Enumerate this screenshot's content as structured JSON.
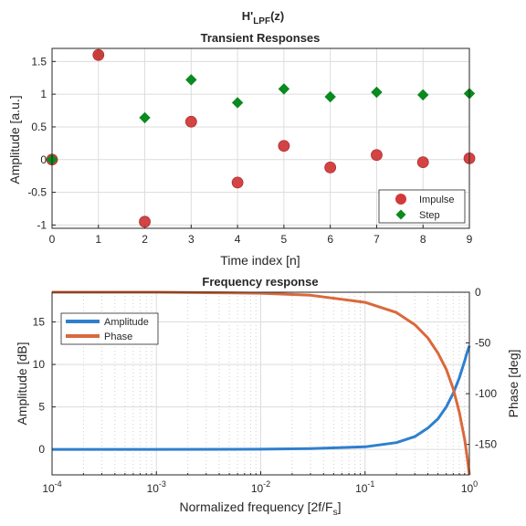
{
  "figure": {
    "suptitle_main": "H'",
    "suptitle_sub": "LPF",
    "suptitle_tail": "(z)"
  },
  "chart_data": [
    {
      "type": "scatter",
      "title": "Transient Responses",
      "xlabel": "Time index [n]",
      "ylabel": "Amplitude [a.u.]",
      "xlim": [
        0,
        9
      ],
      "ylim": [
        -1.05,
        1.7
      ],
      "xticks": [
        "0",
        "1",
        "2",
        "3",
        "4",
        "5",
        "6",
        "7",
        "8",
        "9"
      ],
      "yticks": [
        "1.5",
        "1",
        "0.5",
        "0",
        "-0.5",
        "-1"
      ],
      "grid": true,
      "legend_position": "bottom-right",
      "x": [
        0,
        1,
        2,
        3,
        4,
        5,
        6,
        7,
        8,
        9
      ],
      "series": [
        {
          "name": "Impulse",
          "marker": "circle",
          "color": "#d13a3a",
          "values": [
            0,
            1.6,
            -0.95,
            0.58,
            -0.35,
            0.21,
            -0.12,
            0.07,
            -0.04,
            0.02
          ]
        },
        {
          "name": "Step",
          "marker": "diamond",
          "color": "#0a8a1f",
          "values": [
            0,
            1.6,
            0.64,
            1.22,
            0.87,
            1.08,
            0.96,
            1.03,
            0.99,
            1.01
          ]
        }
      ]
    },
    {
      "type": "line",
      "title": "Frequency response",
      "xlabel_main": "Normalized frequency [2f/F",
      "xlabel_sub": "s",
      "xlabel_tail": "]",
      "ylabel_left": "Amplitude [dB]",
      "ylabel_right": "Phase [deg]",
      "xscale": "log",
      "xlim": [
        0.0001,
        1
      ],
      "ylim_left": [
        -3,
        18.5
      ],
      "ylim_right": [
        -180,
        0
      ],
      "xticks": [
        {
          "base": "10",
          "exp": "-4"
        },
        {
          "base": "10",
          "exp": "-3"
        },
        {
          "base": "10",
          "exp": "-2"
        },
        {
          "base": "10",
          "exp": "-1"
        },
        {
          "base": "10",
          "exp": "0"
        }
      ],
      "yticks_left": [
        "0",
        "5",
        "10",
        "15"
      ],
      "yticks_right": [
        "0",
        "-50",
        "-100",
        "-150"
      ],
      "grid": true,
      "legend_position": "top-left",
      "series": [
        {
          "name": "Amplitude",
          "axis": "left",
          "color": "#2f7fcf",
          "x": [
            0.0001,
            0.001,
            0.01,
            0.03,
            0.1,
            0.2,
            0.3,
            0.4,
            0.5,
            0.6,
            0.7,
            0.8,
            0.9,
            0.95,
            1.0
          ],
          "values": [
            0,
            0,
            0.02,
            0.1,
            0.3,
            0.8,
            1.5,
            2.5,
            3.6,
            5.0,
            6.6,
            8.4,
            10.4,
            11.4,
            12.2
          ]
        },
        {
          "name": "Phase",
          "axis": "right",
          "color": "#d9693b",
          "x": [
            0.0001,
            0.001,
            0.01,
            0.03,
            0.1,
            0.2,
            0.3,
            0.4,
            0.5,
            0.6,
            0.7,
            0.8,
            0.9,
            0.95,
            1.0
          ],
          "values": [
            0,
            0,
            -1,
            -3,
            -10,
            -20,
            -32,
            -45,
            -60,
            -76,
            -95,
            -118,
            -145,
            -162,
            -180
          ]
        }
      ]
    }
  ]
}
